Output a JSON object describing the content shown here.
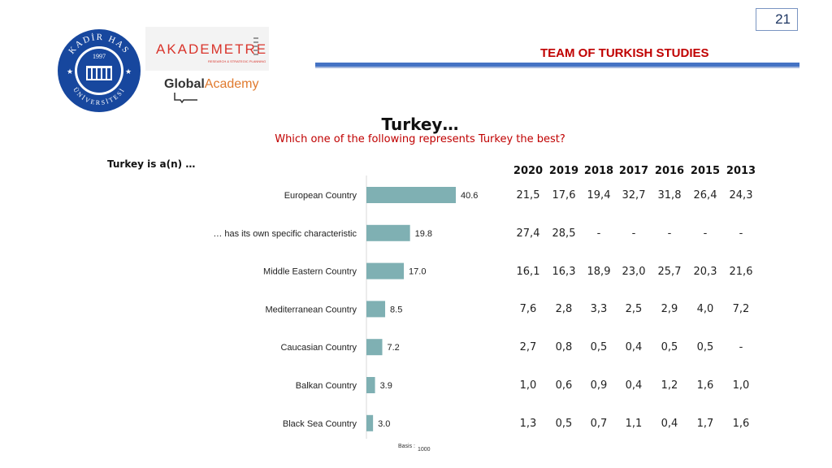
{
  "page_number": "21",
  "header": {
    "team_title": "TEAM OF TURKISH STUDIES"
  },
  "logos": {
    "kadir_has_top": "KADİR HAS",
    "kadir_has_bottom": "ÜNİVERSİTESİ",
    "kadir_has_year": "1997",
    "akademetre": "AKADEMETRE",
    "akademetre_sub": "RESEARCH & STRATEGIC PLANNING",
    "global_1": "Global",
    "global_2": "Academy"
  },
  "title": "Turkey…",
  "subtitle": "Which one of the following represents Turkey the best?",
  "chart_label": "Turkey is a(n) …",
  "basis_label": "Basis :",
  "basis_value": "1000",
  "colors": {
    "bar": "#7fb0b3",
    "red": "#c00000",
    "blue": "#4472c4"
  },
  "chart_data": {
    "type": "bar",
    "orientation": "horizontal",
    "categories": [
      "European Country",
      "… has its own specific characteristic",
      "Middle Eastern Country",
      "Mediterranean Country",
      "Caucasian Country",
      "Balkan Country",
      "Black Sea Country"
    ],
    "values": [
      40.6,
      19.8,
      17.0,
      8.5,
      7.2,
      3.9,
      3.0
    ],
    "value_labels": [
      "40.6",
      "19.8",
      "17.0",
      "8.5",
      "7.2",
      "3.9",
      "3.0"
    ],
    "xlim": [
      0,
      45
    ]
  },
  "table": {
    "years": [
      "2020",
      "2019",
      "2018",
      "2017",
      "2016",
      "2015",
      "2013"
    ],
    "rows": [
      [
        "21,5",
        "17,6",
        "19,4",
        "32,7",
        "31,8",
        "26,4",
        "24,3"
      ],
      [
        "27,4",
        "28,5",
        "-",
        "-",
        "-",
        "-",
        "-"
      ],
      [
        "16,1",
        "16,3",
        "18,9",
        "23,0",
        "25,7",
        "20,3",
        "21,6"
      ],
      [
        "7,6",
        "2,8",
        "3,3",
        "2,5",
        "2,9",
        "4,0",
        "7,2"
      ],
      [
        "2,7",
        "0,8",
        "0,5",
        "0,4",
        "0,5",
        "0,5",
        "-"
      ],
      [
        "1,0",
        "0,6",
        "0,9",
        "0,4",
        "1,2",
        "1,6",
        "1,0"
      ],
      [
        "1,3",
        "0,5",
        "0,7",
        "1,1",
        "0,4",
        "1,7",
        "1,6"
      ]
    ]
  }
}
